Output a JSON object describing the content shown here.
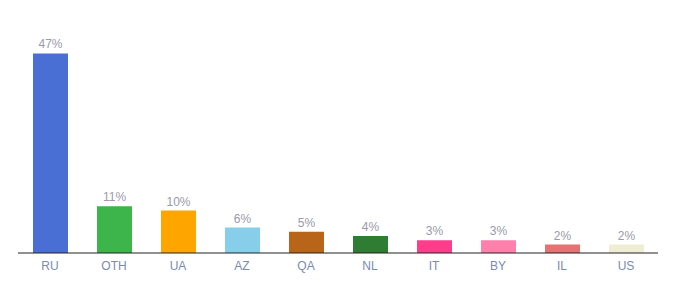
{
  "chart_data": {
    "type": "bar",
    "categories": [
      "RU",
      "OTH",
      "UA",
      "AZ",
      "QA",
      "NL",
      "IT",
      "BY",
      "IL",
      "US"
    ],
    "values": [
      47,
      11,
      10,
      6,
      5,
      4,
      3,
      3,
      2,
      2
    ],
    "value_labels": [
      "47%",
      "11%",
      "10%",
      "6%",
      "5%",
      "4%",
      "3%",
      "3%",
      "2%",
      "2%"
    ],
    "colors": [
      "#4A6FD4",
      "#3DB54A",
      "#FFA500",
      "#87CEEB",
      "#B8651A",
      "#2E7D32",
      "#FF3D8A",
      "#FF80AB",
      "#E57373",
      "#F0EDD5"
    ],
    "ylim": [
      0,
      53
    ],
    "grid": false,
    "data_labels": true,
    "tick_labels": "x"
  }
}
